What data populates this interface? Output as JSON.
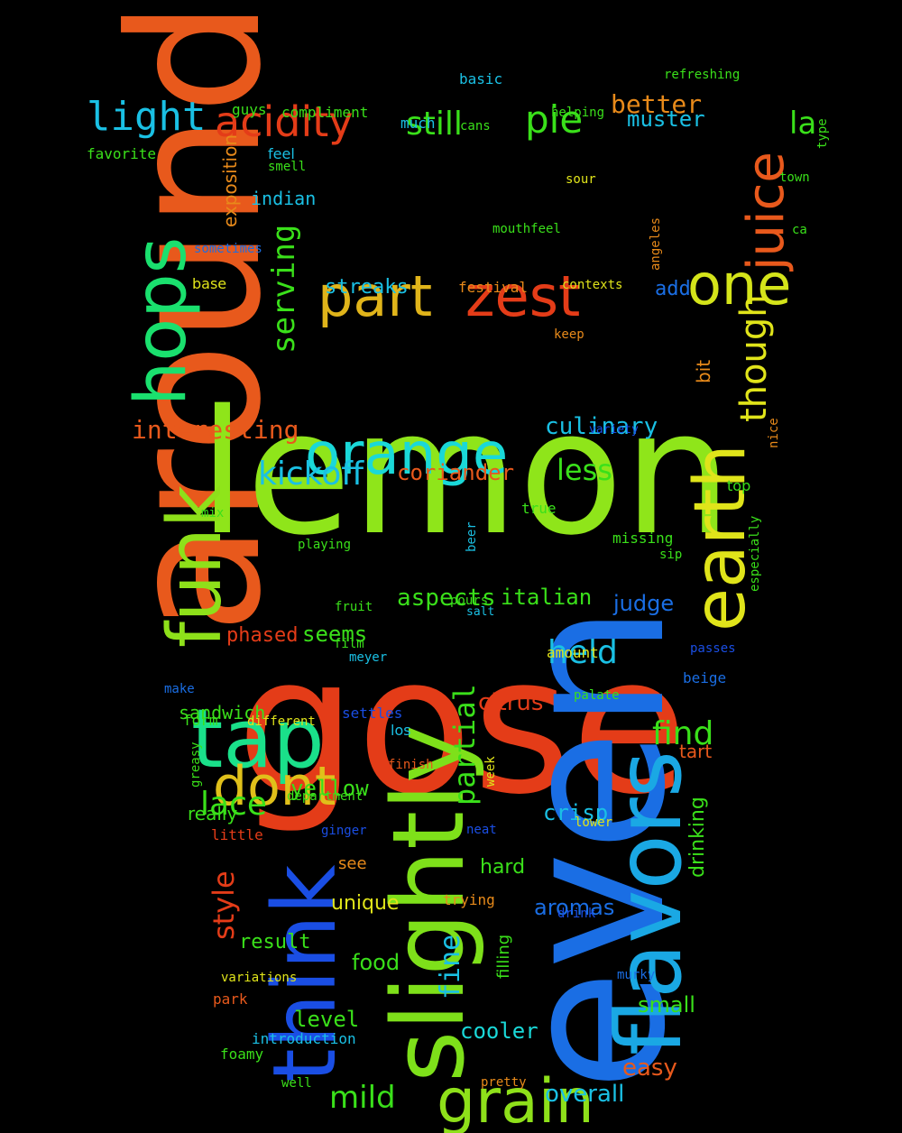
{
  "words": [
    {
      "t": "around",
      "c": "#e8591c"
    },
    {
      "t": "lemon",
      "c": "#8fe51a"
    },
    {
      "t": "gose",
      "c": "#e43c18"
    },
    {
      "t": "even",
      "c": "#1a6ee4"
    },
    {
      "t": "slightly",
      "c": "#7ee01a"
    },
    {
      "t": "flavors",
      "c": "#1aa8e4"
    },
    {
      "t": "think",
      "c": "#1a4ee4"
    },
    {
      "t": "earth",
      "c": "#e0e41a"
    },
    {
      "t": "tap",
      "c": "#1ae08a"
    },
    {
      "t": "funk",
      "c": "#8ee01a"
    },
    {
      "t": "hops",
      "c": "#1ae06e"
    },
    {
      "t": "grain",
      "c": "#8ee01a"
    },
    {
      "t": "orange",
      "c": "#1ad8d8"
    },
    {
      "t": "zest",
      "c": "#e43c18"
    },
    {
      "t": "part",
      "c": "#e0b41a"
    },
    {
      "t": "one",
      "c": "#d4e41a"
    },
    {
      "t": "juice",
      "c": "#e8591c"
    },
    {
      "t": "dont",
      "c": "#e0c01a"
    },
    {
      "t": "acidity",
      "c": "#e43c18"
    },
    {
      "t": "light",
      "c": "#1ac0e4"
    },
    {
      "t": "pie",
      "c": "#3ae01a"
    },
    {
      "t": "still",
      "c": "#3ae01a"
    },
    {
      "t": "though",
      "c": "#e0e41a"
    },
    {
      "t": "la",
      "c": "#3ae01a"
    },
    {
      "t": "better",
      "c": "#e88a1a"
    },
    {
      "t": "muster",
      "c": "#1ac0e4"
    },
    {
      "t": "kickoff",
      "c": "#1ac0e4"
    },
    {
      "t": "serving",
      "c": "#3ae01a"
    },
    {
      "t": "interesting",
      "c": "#e8591c"
    },
    {
      "t": "culinary",
      "c": "#1ac0e4"
    },
    {
      "t": "less",
      "c": "#3ae01a"
    },
    {
      "t": "coriander",
      "c": "#e8591c"
    },
    {
      "t": "held",
      "c": "#1ac0e4"
    },
    {
      "t": "find",
      "c": "#3ae01a"
    },
    {
      "t": "partial",
      "c": "#3ae01a"
    },
    {
      "t": "aspects",
      "c": "#3ae01a"
    },
    {
      "t": "italian",
      "c": "#3ae01a"
    },
    {
      "t": "seems",
      "c": "#3ae01a"
    },
    {
      "t": "phased",
      "c": "#e43c18"
    },
    {
      "t": "judge",
      "c": "#1a6ee4"
    },
    {
      "t": "citrus",
      "c": "#e43c18"
    },
    {
      "t": "lace",
      "c": "#3ae01a"
    },
    {
      "t": "yellow",
      "c": "#3ae01a"
    },
    {
      "t": "style",
      "c": "#e43c18"
    },
    {
      "t": "mild",
      "c": "#3ae01a"
    },
    {
      "t": "fine",
      "c": "#1ac0e4"
    },
    {
      "t": "easy",
      "c": "#e8591c"
    },
    {
      "t": "overall",
      "c": "#1ac0e4"
    },
    {
      "t": "cooler",
      "c": "#1ad8d8"
    },
    {
      "t": "food",
      "c": "#3ae01a"
    },
    {
      "t": "level",
      "c": "#3ae01a"
    },
    {
      "t": "result",
      "c": "#3ae01a"
    },
    {
      "t": "aromas",
      "c": "#1a6ee4"
    },
    {
      "t": "drinking",
      "c": "#3ae01a"
    },
    {
      "t": "crisp",
      "c": "#1ac0e4"
    },
    {
      "t": "hard",
      "c": "#3ae01a"
    },
    {
      "t": "unique",
      "c": "#e0e41a"
    },
    {
      "t": "small",
      "c": "#3ae01a"
    },
    {
      "t": "sandwich",
      "c": "#3ae01a"
    },
    {
      "t": "really",
      "c": "#3ae01a"
    },
    {
      "t": "streaks",
      "c": "#1ac0e4"
    },
    {
      "t": "indian",
      "c": "#1ac0e4"
    },
    {
      "t": "exposition",
      "c": "#e88a1a"
    },
    {
      "t": "add",
      "c": "#1a6ee4"
    },
    {
      "t": "bit",
      "c": "#e88a1a"
    },
    {
      "t": "tart",
      "c": "#e8591c"
    },
    {
      "t": "see",
      "c": "#e88a1a"
    },
    {
      "t": "filling",
      "c": "#3ae01a"
    },
    {
      "t": "basic",
      "c": "#1ac0e4"
    },
    {
      "t": "refreshing",
      "c": "#3ae01a"
    },
    {
      "t": "guys",
      "c": "#3ae01a"
    },
    {
      "t": "compliment",
      "c": "#3ae01a"
    },
    {
      "t": "much",
      "c": "#1ac0e4"
    },
    {
      "t": "cans",
      "c": "#3ae01a"
    },
    {
      "t": "helping",
      "c": "#3ae01a"
    },
    {
      "t": "favorite",
      "c": "#3ae01a"
    },
    {
      "t": "feel",
      "c": "#1ac0e4"
    },
    {
      "t": "smell",
      "c": "#3ae01a"
    },
    {
      "t": "sour",
      "c": "#e0e41a"
    },
    {
      "t": "type",
      "c": "#3ae01a"
    },
    {
      "t": "town",
      "c": "#3ae01a"
    },
    {
      "t": "ca",
      "c": "#3ae01a"
    },
    {
      "t": "angeles",
      "c": "#e88a1a"
    },
    {
      "t": "mouthfeel",
      "c": "#3ae01a"
    },
    {
      "t": "sometimes",
      "c": "#1a6ee4"
    },
    {
      "t": "base",
      "c": "#e0e41a"
    },
    {
      "t": "festival",
      "c": "#e88a1a"
    },
    {
      "t": "contexts",
      "c": "#e0e41a"
    },
    {
      "t": "keep",
      "c": "#e88a1a"
    },
    {
      "t": "variety",
      "c": "#1a4ee4"
    },
    {
      "t": "nice",
      "c": "#e88a1a"
    },
    {
      "t": "top",
      "c": "#3ae01a"
    },
    {
      "t": "true",
      "c": "#3ae01a"
    },
    {
      "t": "mix",
      "c": "#3ae01a"
    },
    {
      "t": "playing",
      "c": "#3ae01a"
    },
    {
      "t": "beer",
      "c": "#1ac0e4"
    },
    {
      "t": "missing",
      "c": "#3ae01a"
    },
    {
      "t": "sip",
      "c": "#3ae01a"
    },
    {
      "t": "especially",
      "c": "#3ae01a"
    },
    {
      "t": "pours",
      "c": "#3ae01a"
    },
    {
      "t": "salt",
      "c": "#1ac0e4"
    },
    {
      "t": "fruit",
      "c": "#3ae01a"
    },
    {
      "t": "film",
      "c": "#3ae01a"
    },
    {
      "t": "meyer",
      "c": "#1ac0e4"
    },
    {
      "t": "amount",
      "c": "#e0e41a"
    },
    {
      "t": "passes",
      "c": "#1a4ee4"
    },
    {
      "t": "beige",
      "c": "#1a6ee4"
    },
    {
      "t": "make",
      "c": "#1a6ee4"
    },
    {
      "t": "palate",
      "c": "#3ae01a"
    },
    {
      "t": "settles",
      "c": "#1a4ee4"
    },
    {
      "t": "form",
      "c": "#3ae01a"
    },
    {
      "t": "different",
      "c": "#e0e41a"
    },
    {
      "t": "los",
      "c": "#1ac0e4"
    },
    {
      "t": "finish",
      "c": "#e8591c"
    },
    {
      "t": "week",
      "c": "#e0e41a"
    },
    {
      "t": "greasy",
      "c": "#3ae01a"
    },
    {
      "t": "department",
      "c": "#3ae01a"
    },
    {
      "t": "little",
      "c": "#e43c18"
    },
    {
      "t": "ginger",
      "c": "#1a4ee4"
    },
    {
      "t": "neat",
      "c": "#1a4ee4"
    },
    {
      "t": "lower",
      "c": "#e0e41a"
    },
    {
      "t": "drink",
      "c": "#1a4ee4"
    },
    {
      "t": "trying",
      "c": "#e88a1a"
    },
    {
      "t": "variations",
      "c": "#e0e41a"
    },
    {
      "t": "murky",
      "c": "#1a6ee4"
    },
    {
      "t": "park",
      "c": "#e8591c"
    },
    {
      "t": "introduction",
      "c": "#1ac0e4"
    },
    {
      "t": "foamy",
      "c": "#3ae01a"
    },
    {
      "t": "well",
      "c": "#3ae01a"
    },
    {
      "t": "pretty",
      "c": "#e88a1a"
    }
  ]
}
